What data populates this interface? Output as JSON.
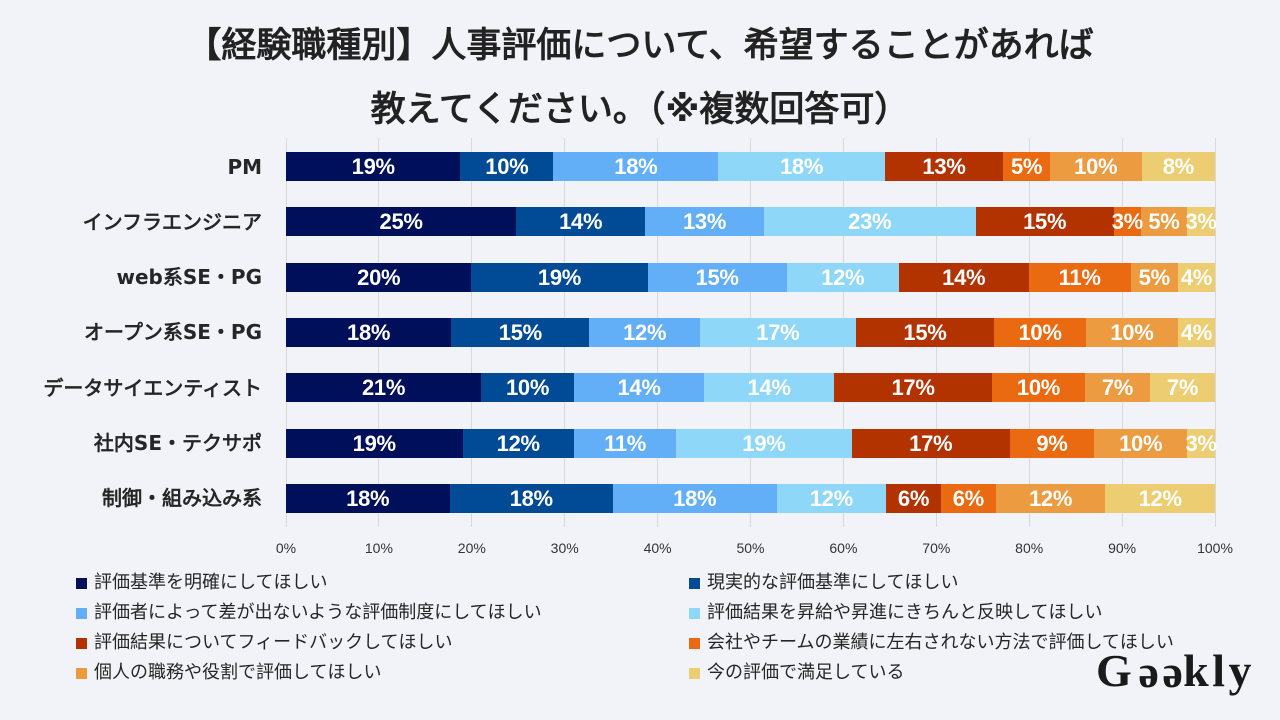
{
  "title": {
    "line1": "【経験職種別】人事評価について、希望することがあれば",
    "line2": "教えてください。（※複数回答可）"
  },
  "chart_data": {
    "type": "bar",
    "orientation": "horizontal",
    "stacked": "percent",
    "title": "【経験職種別】人事評価について、希望することがあれば教えてください。（※複数回答可）",
    "xlabel": "",
    "ylabel": "",
    "xlim": [
      0,
      100
    ],
    "xticks": [
      "0%",
      "10%",
      "20%",
      "30%",
      "40%",
      "50%",
      "60%",
      "70%",
      "80%",
      "90%",
      "100%"
    ],
    "grid": true,
    "legend_position": "bottom",
    "categories": [
      "PM",
      "インフラエンジニア",
      "web系SE・PG",
      "オープン系SE・PG",
      "データサイエンティスト",
      "社内SE・テクサポ",
      "制御・組み込み系"
    ],
    "series": [
      {
        "name": "評価基準を明確にしてほしい",
        "color": "#000F5A",
        "values": [
          18.8,
          24.8,
          20.0,
          17.8,
          21.0,
          19.0,
          17.6
        ],
        "labels": [
          "19%",
          "25%",
          "20%",
          "18%",
          "21%",
          "19%",
          "18%"
        ]
      },
      {
        "name": "現実的な評価基準にしてほしい",
        "color": "#004A96",
        "values": [
          10.0,
          13.9,
          19.0,
          14.9,
          10.0,
          12.0,
          17.6
        ],
        "labels": [
          "10%",
          "14%",
          "19%",
          "15%",
          "10%",
          "12%",
          "18%"
        ]
      },
      {
        "name": "評価者によって差が出ないような評価制度にしてほしい",
        "color": "#62AEF7",
        "values": [
          17.8,
          12.8,
          15.0,
          11.9,
          14.0,
          11.0,
          17.6
        ],
        "labels": [
          "18%",
          "13%",
          "15%",
          "12%",
          "14%",
          "11%",
          "18%"
        ]
      },
      {
        "name": "評価結果を昇給や昇進にきちんと反映してほしい",
        "color": "#8FD7F9",
        "values": [
          17.9,
          22.8,
          12.1,
          16.8,
          14.0,
          18.9,
          11.8
        ],
        "labels": [
          "18%",
          "23%",
          "12%",
          "17%",
          "14%",
          "19%",
          "12%"
        ]
      },
      {
        "name": "評価結果についてフィードバックしてほしい",
        "color": "#B23200",
        "values": [
          12.8,
          14.9,
          14.0,
          14.9,
          17.0,
          17.0,
          5.9
        ],
        "labels": [
          "13%",
          "15%",
          "14%",
          "15%",
          "17%",
          "17%",
          "6%"
        ]
      },
      {
        "name": "会社やチームの業績に左右されない方法で評価してほしい",
        "color": "#E96A10",
        "values": [
          5.0,
          2.9,
          11.0,
          9.9,
          10.0,
          9.1,
          5.9
        ],
        "labels": [
          "5%",
          "3%",
          "11%",
          "10%",
          "10%",
          "9%",
          "6%"
        ]
      },
      {
        "name": "個人の職務や役割で評価してほしい",
        "color": "#EC9B40",
        "values": [
          9.9,
          5.0,
          5.1,
          9.9,
          7.0,
          10.0,
          11.8
        ],
        "labels": [
          "10%",
          "5%",
          "5%",
          "10%",
          "7%",
          "10%",
          "12%"
        ]
      },
      {
        "name": "今の評価で満足している",
        "color": "#ECCD72",
        "values": [
          7.9,
          3.0,
          4.0,
          4.0,
          7.0,
          3.0,
          11.8
        ],
        "labels": [
          "8%",
          "3%",
          "4%",
          "4%",
          "7%",
          "3%",
          "12%"
        ]
      }
    ]
  },
  "logo": {
    "text": "Geekly"
  }
}
